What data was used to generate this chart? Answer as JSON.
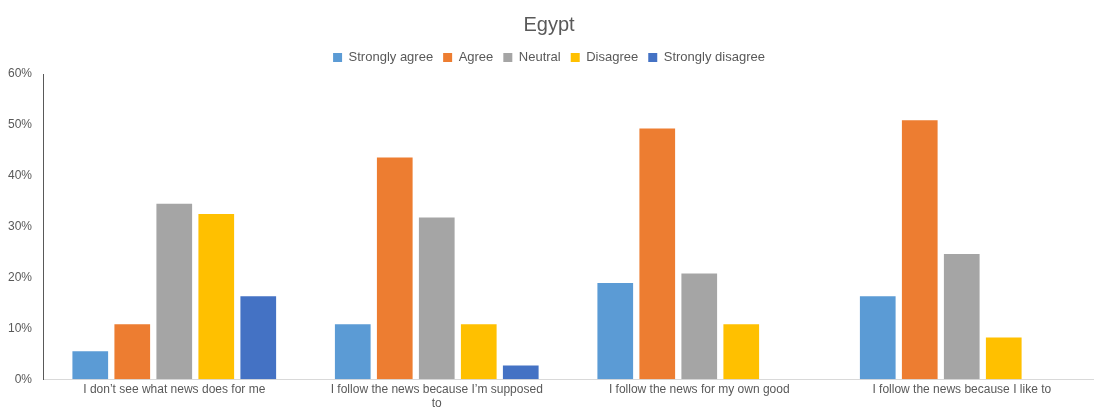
{
  "chart_data": {
    "type": "bar",
    "title": "Egypt",
    "categories": [
      "I don’t see what news does for me",
      "I follow the news because I’m supposed to",
      "I follow the news for my own good",
      "I follow the news because I like to"
    ],
    "series": [
      {
        "name": "Strongly agree",
        "color": "#5b9bd5",
        "values": [
          5.5,
          10.8,
          18.9,
          16.3
        ]
      },
      {
        "name": "Agree",
        "color": "#ed7d31",
        "values": [
          10.8,
          43.6,
          49.3,
          50.9
        ]
      },
      {
        "name": "Neutral",
        "color": "#a5a5a5",
        "values": [
          34.5,
          31.8,
          20.8,
          24.6
        ]
      },
      {
        "name": "Disagree",
        "color": "#ffc000",
        "values": [
          32.5,
          10.8,
          10.8,
          8.2
        ]
      },
      {
        "name": "Strongly disagree",
        "color": "#4472c4",
        "values": [
          16.3,
          2.7,
          0,
          0
        ]
      }
    ],
    "ylim": [
      0,
      60
    ],
    "yticks": [
      {
        "value": 0,
        "label": "0%"
      },
      {
        "value": 10,
        "label": "10%"
      },
      {
        "value": 20,
        "label": "20%"
      },
      {
        "value": 30,
        "label": "30%"
      },
      {
        "value": 40,
        "label": "40%"
      },
      {
        "value": 50,
        "label": "50%"
      },
      {
        "value": 60,
        "label": "60%"
      }
    ],
    "grid": false,
    "legend": "top"
  }
}
